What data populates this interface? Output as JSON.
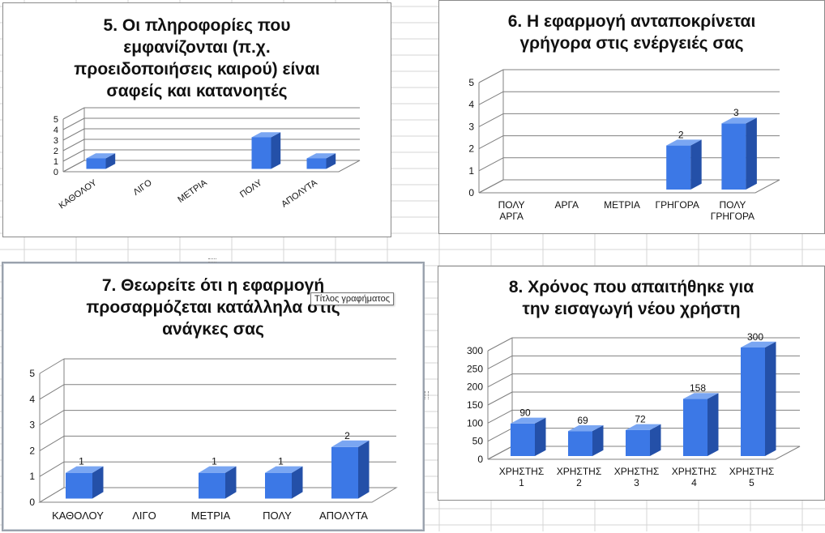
{
  "colors": {
    "bar_front": "#3c78e6",
    "bar_side": "#2450a8",
    "bar_top": "#7aa6f2",
    "axis_line": "#808080"
  },
  "tooltip_text": "Τίτλος γραφήματος",
  "chart_data": [
    {
      "type": "bar",
      "title": "5. Οι πληροφορίες που εμφανίζονται (π.χ. προειδοποιήσεις καιρού) είναι σαφείς και κατανοητές",
      "title_lines": [
        "5. Οι πληροφορίες που",
        "εμφανίζονται (π.χ.",
        "προειδοποιήσεις καιρού) είναι",
        "σαφείς και κατανοητές"
      ],
      "categories": [
        "ΚΑΘΟΛΟΥ",
        "ΛΙΓΟ",
        "ΜΕΤΡΙΑ",
        "ΠΟΛΥ",
        "ΑΠΟΛΥΤΑ"
      ],
      "values": [
        1,
        0,
        0,
        3,
        1
      ],
      "ylim": [
        0,
        5
      ],
      "yticks": [
        "0",
        "1",
        "2",
        "3",
        "4",
        "5"
      ],
      "data_labels": false,
      "rotated_labels": true,
      "grid": true
    },
    {
      "type": "bar",
      "title": "6. Η εφαρμογή ανταποκρίνεται γρήγορα στις ενέργειές σας",
      "title_lines": [
        "6. Η εφαρμογή ανταποκρίνεται",
        "γρήγορα στις ενέργειές σας"
      ],
      "categories": [
        "ΠΟΛΥ ΑΡΓΑ",
        "ΑΡΓΑ",
        "ΜΕΤΡΙΑ",
        "ΓΡΗΓΟΡΑ",
        "ΠΟΛΥ ΓΡΗΓΟΡΑ"
      ],
      "category_lines": [
        [
          "ΠΟΛΥ",
          "ΑΡΓΑ"
        ],
        [
          "ΑΡΓΑ"
        ],
        [
          "ΜΕΤΡΙΑ"
        ],
        [
          "ΓΡΗΓΟΡΑ"
        ],
        [
          "ΠΟΛΥ",
          "ΓΡΗΓΟΡΑ"
        ]
      ],
      "values": [
        0,
        0,
        0,
        2,
        3
      ],
      "value_labels": [
        "",
        "",
        "",
        "2",
        "3"
      ],
      "ylim": [
        0,
        5
      ],
      "yticks": [
        "0",
        "1",
        "2",
        "3",
        "4",
        "5"
      ],
      "data_labels": true,
      "grid": true
    },
    {
      "type": "bar",
      "title": "7. Θεωρείτε ότι η εφαρμογή προσαρμόζεται κατάλληλα στις ανάγκες σας",
      "title_lines": [
        "7. Θεωρείτε ότι η εφαρμογή",
        "προσαρμόζεται κατάλληλα στις",
        "ανάγκες σας"
      ],
      "categories": [
        "ΚΑΘΟΛΟΥ",
        "ΛΙΓΟ",
        "ΜΕΤΡΙΑ",
        "ΠΟΛΥ",
        "ΑΠΟΛΥΤΑ"
      ],
      "values": [
        1,
        0,
        1,
        1,
        2
      ],
      "value_labels": [
        "1",
        "",
        "1",
        "1",
        "2"
      ],
      "ylim": [
        0,
        5
      ],
      "yticks": [
        "0",
        "1",
        "2",
        "3",
        "4",
        "5"
      ],
      "data_labels": true,
      "grid": true
    },
    {
      "type": "bar",
      "title": "8. Χρόνος που απαιτήθηκε για την εισαγωγή νέου χρήστη",
      "title_lines": [
        "8. Χρόνος που απαιτήθηκε για",
        "την εισαγωγή νέου χρήστη"
      ],
      "categories": [
        "ΧΡΗΣΤΗΣ 1",
        "ΧΡΗΣΤΗΣ 2",
        "ΧΡΗΣΤΗΣ 3",
        "ΧΡΗΣΤΗΣ 4",
        "ΧΡΗΣΤΗΣ 5"
      ],
      "category_lines": [
        [
          "ΧΡΗΣΤΗΣ",
          "1"
        ],
        [
          "ΧΡΗΣΤΗΣ",
          "2"
        ],
        [
          "ΧΡΗΣΤΗΣ",
          "3"
        ],
        [
          "ΧΡΗΣΤΗΣ",
          "4"
        ],
        [
          "ΧΡΗΣΤΗΣ",
          "5"
        ]
      ],
      "values": [
        90,
        69,
        72,
        158,
        300
      ],
      "value_labels": [
        "90",
        "69",
        "72",
        "158",
        "300"
      ],
      "ylim": [
        0,
        300
      ],
      "yticks": [
        "0",
        "50",
        "100",
        "150",
        "200",
        "250",
        "300"
      ],
      "data_labels": true,
      "grid": true
    }
  ]
}
